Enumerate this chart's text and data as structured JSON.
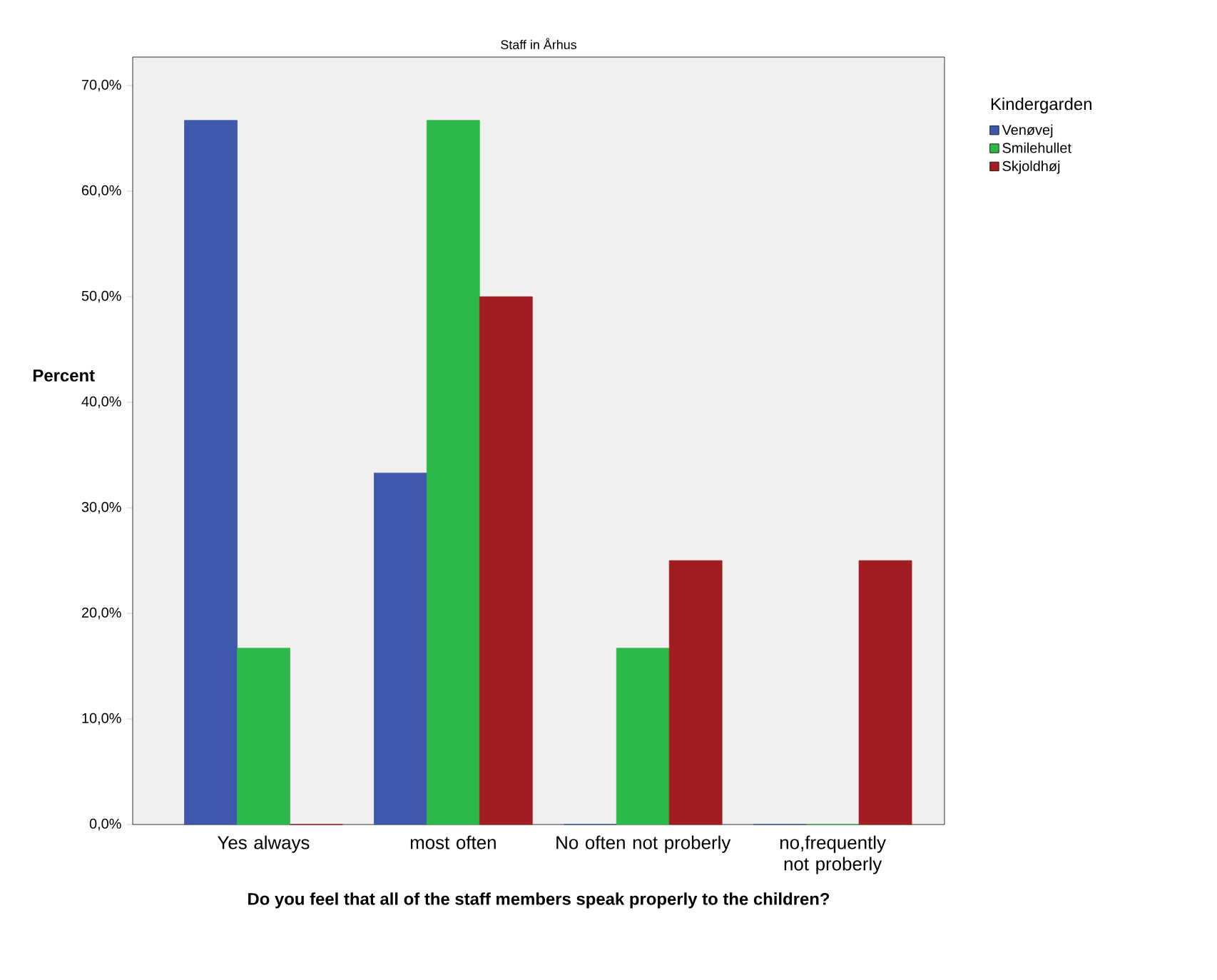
{
  "chart_data": {
    "type": "bar",
    "title": "Staff in Århus",
    "xlabel": "Do you feel that all of the staff members speak properly to the children?",
    "ylabel": "Percent",
    "legend_title": "Kindergarden",
    "categories": [
      "Yes always",
      "most often",
      "No often not proberly",
      "no,frequently not proberly"
    ],
    "series": [
      {
        "name": "Venøvej",
        "color": "#3e58ac",
        "values": [
          66.7,
          33.3,
          0,
          0
        ]
      },
      {
        "name": "Smilehullet",
        "color": "#2db84a",
        "values": [
          16.7,
          66.7,
          16.7,
          0
        ]
      },
      {
        "name": "Skjoldhøj",
        "color": "#a21d21",
        "values": [
          0,
          50,
          25,
          25
        ]
      }
    ],
    "ylim": [
      0,
      72.7
    ],
    "yticks": [
      {
        "value": 0,
        "label": "0,0%"
      },
      {
        "value": 10,
        "label": "10,0%"
      },
      {
        "value": 20,
        "label": "20,0%"
      },
      {
        "value": 30,
        "label": "30,0%"
      },
      {
        "value": 40,
        "label": "40,0%"
      },
      {
        "value": 50,
        "label": "50,0%"
      },
      {
        "value": 60,
        "label": "60,0%"
      },
      {
        "value": 70,
        "label": "70,0%"
      }
    ],
    "legend": "right",
    "grid": false
  }
}
